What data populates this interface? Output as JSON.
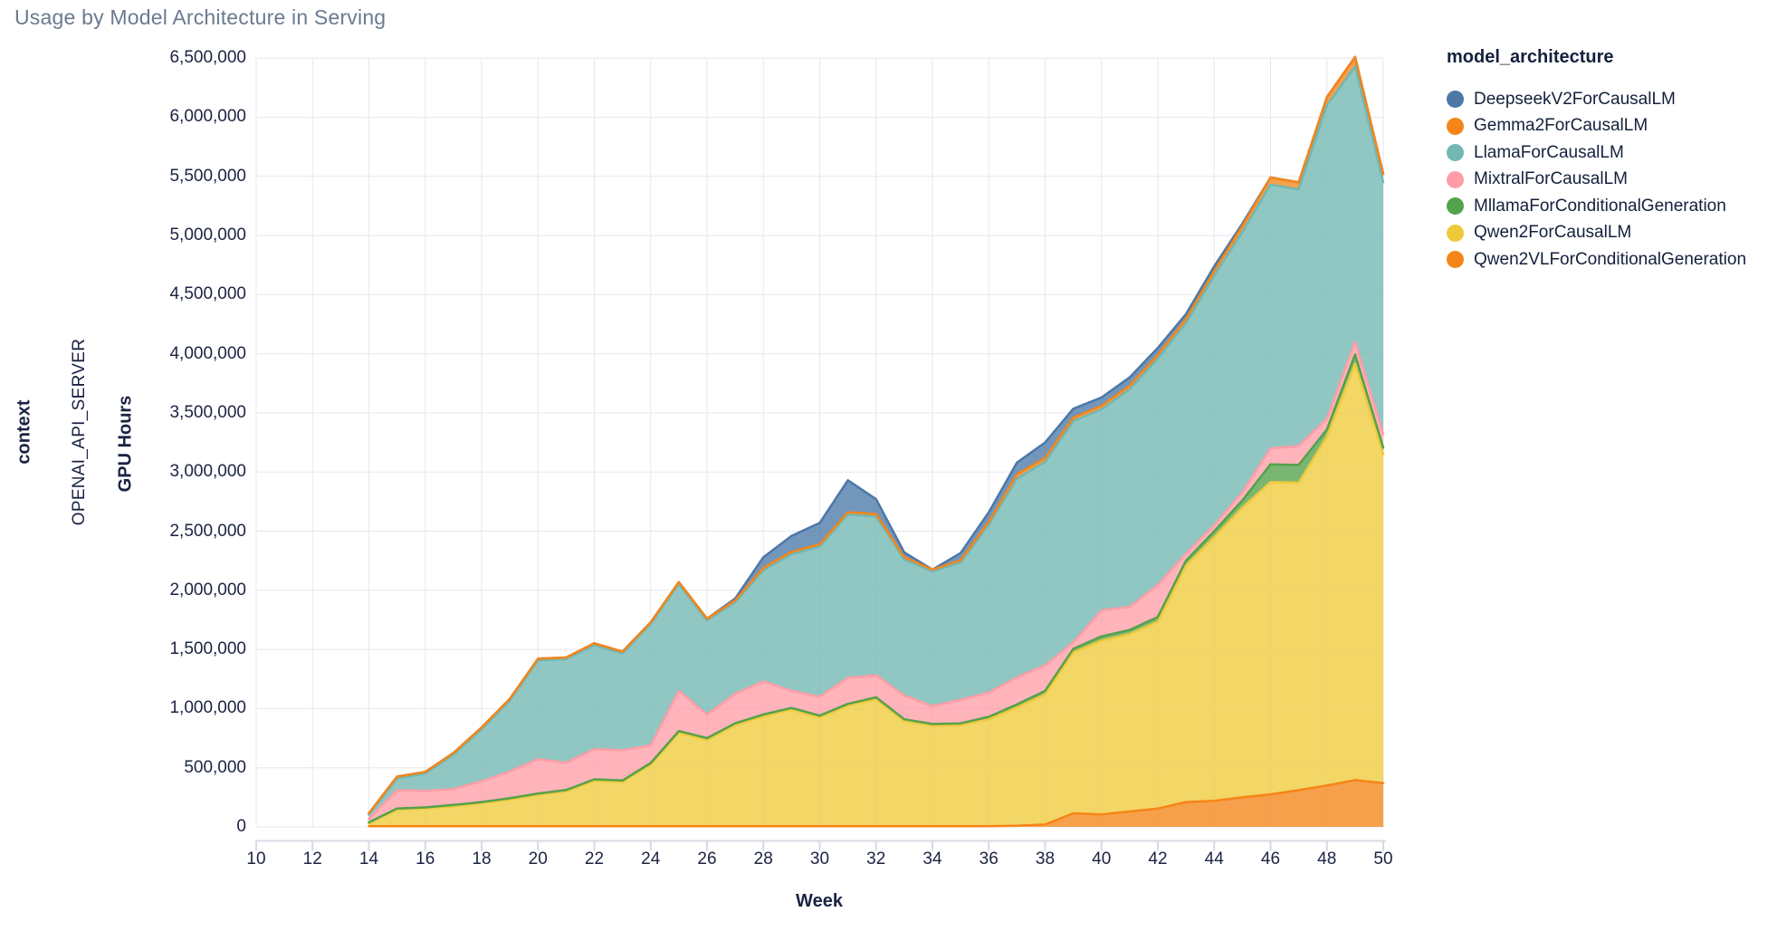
{
  "title": "Usage by Model Architecture in Serving",
  "chart_data": {
    "type": "area",
    "stacked": true,
    "title": "Usage by Model Architecture in Serving",
    "legend_title": "model_architecture",
    "xlabel": "Week",
    "ylabel": "GPU Hours",
    "facet": {
      "field": "context",
      "value": "OPENAI_API_SERVER"
    },
    "xlim": [
      10,
      50
    ],
    "ylim": [
      0,
      6500000
    ],
    "grid": true,
    "legend_position": "right",
    "x_ticks": [
      10,
      12,
      14,
      16,
      18,
      20,
      22,
      24,
      26,
      28,
      30,
      32,
      34,
      36,
      38,
      40,
      42,
      44,
      46,
      48,
      50
    ],
    "y_ticks": [
      0,
      500000,
      1000000,
      1500000,
      2000000,
      2500000,
      3000000,
      3500000,
      4000000,
      4500000,
      5000000,
      5500000,
      6000000,
      6500000
    ],
    "x": [
      14,
      15,
      16,
      17,
      18,
      19,
      20,
      21,
      22,
      23,
      24,
      25,
      26,
      27,
      28,
      29,
      30,
      31,
      32,
      33,
      34,
      35,
      36,
      37,
      38,
      39,
      40,
      41,
      42,
      43,
      44,
      45,
      46,
      47,
      48,
      49,
      50
    ],
    "stack_order": [
      "Qwen2VLForConditionalGeneration",
      "Qwen2ForCausalLM",
      "MllamaForConditionalGeneration",
      "MixtralForCausalLM",
      "LlamaForCausalLM",
      "Gemma2ForCausalLM",
      "DeepseekV2ForCausalLM"
    ],
    "series": [
      {
        "name": "DeepseekV2ForCausalLM",
        "color": "#4c78a8",
        "values": [
          0,
          0,
          0,
          0,
          0,
          0,
          0,
          0,
          0,
          0,
          0,
          0,
          0,
          15000,
          90000,
          135000,
          180000,
          270000,
          125000,
          40000,
          0,
          60000,
          80000,
          100000,
          130000,
          75000,
          70000,
          70000,
          60000,
          40000,
          40000,
          20000,
          0,
          0,
          0,
          0,
          0
        ]
      },
      {
        "name": "Gemma2ForCausalLM",
        "color": "#f58518",
        "values": [
          12000,
          15000,
          15000,
          15000,
          15000,
          15000,
          15000,
          15000,
          15000,
          15000,
          15000,
          15000,
          15000,
          15000,
          20000,
          20000,
          20000,
          20000,
          20000,
          20000,
          15000,
          20000,
          25000,
          35000,
          35000,
          30000,
          30000,
          30000,
          30000,
          35000,
          40000,
          50000,
          60000,
          60000,
          70000,
          80000,
          70000
        ]
      },
      {
        "name": "LlamaForCausalLM",
        "color": "#72b7b2",
        "values": [
          35000,
          100000,
          145000,
          290000,
          440000,
          600000,
          835000,
          875000,
          880000,
          820000,
          1025000,
          905000,
          795000,
          775000,
          940000,
          1155000,
          1270000,
          1380000,
          1345000,
          1150000,
          1140000,
          1160000,
          1420000,
          1680000,
          1720000,
          1870000,
          1700000,
          1840000,
          1915000,
          1950000,
          2110000,
          2200000,
          2230000,
          2170000,
          2650000,
          2330000,
          2130000
        ]
      },
      {
        "name": "MixtralForCausalLM",
        "color": "#ff9da6",
        "values": [
          30000,
          155000,
          140000,
          135000,
          175000,
          225000,
          290000,
          230000,
          255000,
          255000,
          150000,
          340000,
          200000,
          250000,
          280000,
          145000,
          160000,
          220000,
          185000,
          200000,
          150000,
          200000,
          205000,
          230000,
          215000,
          55000,
          220000,
          195000,
          270000,
          60000,
          50000,
          70000,
          135000,
          160000,
          90000,
          105000,
          115000
        ]
      },
      {
        "name": "MllamaForConditionalGeneration",
        "color": "#54a24b",
        "values": [
          8000,
          10000,
          10000,
          10000,
          10000,
          12000,
          12000,
          12000,
          12000,
          12000,
          15000,
          15000,
          15000,
          15000,
          15000,
          15000,
          15000,
          15000,
          15000,
          15000,
          15000,
          15000,
          20000,
          25000,
          30000,
          30000,
          35000,
          35000,
          40000,
          40000,
          50000,
          60000,
          150000,
          150000,
          60000,
          80000,
          55000
        ]
      },
      {
        "name": "Qwen2ForCausalLM",
        "color": "#eeca3b",
        "values": [
          25000,
          140000,
          150000,
          170000,
          195000,
          225000,
          265000,
          295000,
          385000,
          375000,
          520000,
          790000,
          730000,
          855000,
          930000,
          985000,
          920000,
          1020000,
          1075000,
          890000,
          850000,
          855000,
          905000,
          1000000,
          1100000,
          1360000,
          1470000,
          1500000,
          1580000,
          2000000,
          2230000,
          2450000,
          2640000,
          2600000,
          2950000,
          3520000,
          2780000
        ]
      },
      {
        "name": "Qwen2VLForConditionalGeneration",
        "color": "#f58518",
        "values": [
          5000,
          5000,
          5000,
          5000,
          5000,
          5000,
          5000,
          5000,
          5000,
          5000,
          5000,
          5000,
          5000,
          5000,
          5000,
          5000,
          5000,
          5000,
          5000,
          5000,
          5000,
          5000,
          5000,
          10000,
          20000,
          115000,
          105000,
          130000,
          155000,
          210000,
          220000,
          250000,
          275000,
          310000,
          350000,
          395000,
          370000
        ]
      }
    ]
  }
}
